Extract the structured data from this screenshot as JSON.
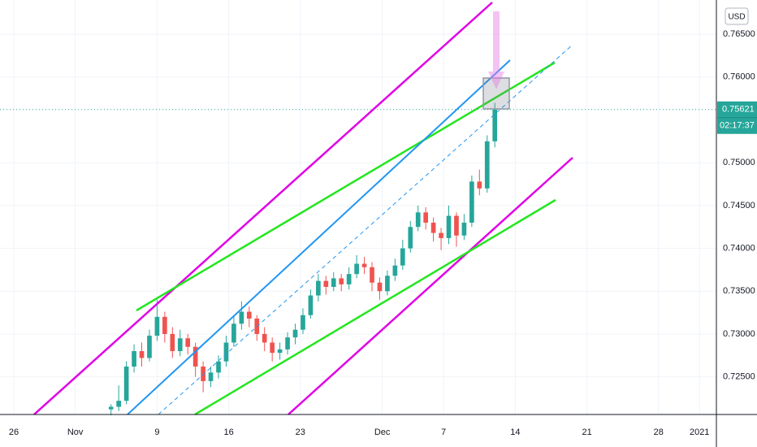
{
  "chart_data": {
    "type": "candlestick",
    "currency": "USD",
    "last_price": 0.75621,
    "countdown": "02:17:37",
    "x": [
      9.5,
      10.25,
      11,
      11.75,
      12.5,
      13.25,
      14,
      14.75,
      15.5,
      16.25,
      17,
      17.75,
      18.5,
      19.25,
      20,
      20.75,
      21.5,
      22.25,
      23,
      23.75,
      24.5,
      25.25,
      26,
      26.75,
      27.5,
      28.25,
      29,
      29.75,
      30.5,
      31.25,
      32,
      32.75,
      33.5,
      34.25,
      35,
      35.75,
      36.5,
      37.25,
      38,
      38.75,
      39.5,
      40.25,
      41,
      41.75,
      42.5,
      43.25,
      44,
      44.75,
      45.5,
      46.25,
      47
    ],
    "open": [
      0.7212,
      0.7215,
      0.7222,
      0.7262,
      0.728,
      0.7272,
      0.7298,
      0.732,
      0.73,
      0.728,
      0.7295,
      0.7285,
      0.7262,
      0.7245,
      0.7255,
      0.7268,
      0.729,
      0.7312,
      0.7326,
      0.7318,
      0.73,
      0.729,
      0.7278,
      0.7282,
      0.7296,
      0.7305,
      0.7322,
      0.7345,
      0.7362,
      0.7355,
      0.7365,
      0.7358,
      0.737,
      0.7382,
      0.7378,
      0.736,
      0.735,
      0.7368,
      0.738,
      0.74,
      0.7425,
      0.7442,
      0.743,
      0.7418,
      0.7412,
      0.7438,
      0.7415,
      0.743,
      0.7478,
      0.747,
      0.7525
    ],
    "high": [
      0.7218,
      0.724,
      0.7268,
      0.7288,
      0.729,
      0.7305,
      0.734,
      0.7326,
      0.7308,
      0.7305,
      0.73,
      0.729,
      0.7268,
      0.7262,
      0.7275,
      0.7298,
      0.732,
      0.7338,
      0.7332,
      0.7322,
      0.7308,
      0.7296,
      0.729,
      0.7302,
      0.7312,
      0.733,
      0.7352,
      0.737,
      0.7368,
      0.7372,
      0.737,
      0.7378,
      0.7392,
      0.739,
      0.7384,
      0.7366,
      0.7374,
      0.7388,
      0.741,
      0.7432,
      0.745,
      0.7448,
      0.7436,
      0.7424,
      0.745,
      0.7442,
      0.744,
      0.7485,
      0.7492,
      0.7532,
      0.757
    ],
    "low": [
      0.7205,
      0.721,
      0.7218,
      0.7255,
      0.7262,
      0.7268,
      0.7292,
      0.729,
      0.7272,
      0.7274,
      0.7276,
      0.725,
      0.7232,
      0.7238,
      0.7248,
      0.7262,
      0.7285,
      0.7305,
      0.7308,
      0.7292,
      0.728,
      0.7268,
      0.727,
      0.7276,
      0.7288,
      0.73,
      0.7318,
      0.7338,
      0.7346,
      0.735,
      0.735,
      0.7352,
      0.7365,
      0.737,
      0.735,
      0.734,
      0.7345,
      0.7362,
      0.7375,
      0.7395,
      0.742,
      0.7422,
      0.7408,
      0.7398,
      0.7405,
      0.7402,
      0.741,
      0.7425,
      0.7462,
      0.7465,
      0.7518
    ],
    "close": [
      0.7215,
      0.7222,
      0.7262,
      0.728,
      0.7272,
      0.7298,
      0.732,
      0.73,
      0.728,
      0.7295,
      0.7285,
      0.7262,
      0.7245,
      0.7255,
      0.7268,
      0.729,
      0.7312,
      0.7326,
      0.7318,
      0.73,
      0.729,
      0.7278,
      0.7282,
      0.7296,
      0.7305,
      0.7322,
      0.7345,
      0.7362,
      0.7355,
      0.7365,
      0.7358,
      0.737,
      0.7382,
      0.7378,
      0.736,
      0.735,
      0.7368,
      0.738,
      0.74,
      0.7425,
      0.7442,
      0.743,
      0.7418,
      0.7412,
      0.7438,
      0.7415,
      0.743,
      0.7478,
      0.747,
      0.7525,
      0.7562
    ],
    "up_color": "#26a69a",
    "down_color": "#ef5350",
    "xlim": [
      -1.35,
      68.65
    ],
    "xticks": [
      {
        "value": 0,
        "label": "26"
      },
      {
        "value": 6,
        "label": "Nov"
      },
      {
        "value": 14,
        "label": "9"
      },
      {
        "value": 21,
        "label": "16"
      },
      {
        "value": 28,
        "label": "23"
      },
      {
        "value": 36,
        "label": "Dec"
      },
      {
        "value": 42,
        "label": "7"
      },
      {
        "value": 49,
        "label": "14"
      },
      {
        "value": 56,
        "label": "21"
      },
      {
        "value": 63,
        "label": "28"
      },
      {
        "value": 67,
        "label": "2021"
      }
    ],
    "ylim": [
      0.7206,
      0.769
    ],
    "yticks": [
      {
        "value": 0.725,
        "label": "0.72500"
      },
      {
        "value": 0.73,
        "label": "0.73000"
      },
      {
        "value": 0.735,
        "label": "0.73500"
      },
      {
        "value": 0.74,
        "label": "0.74000"
      },
      {
        "value": 0.745,
        "label": "0.74500"
      },
      {
        "value": 0.75,
        "label": "0.75000"
      },
      {
        "value": 0.76,
        "label": "0.76000"
      },
      {
        "value": 0.765,
        "label": "0.76500"
      }
    ],
    "grid": true
  }
}
